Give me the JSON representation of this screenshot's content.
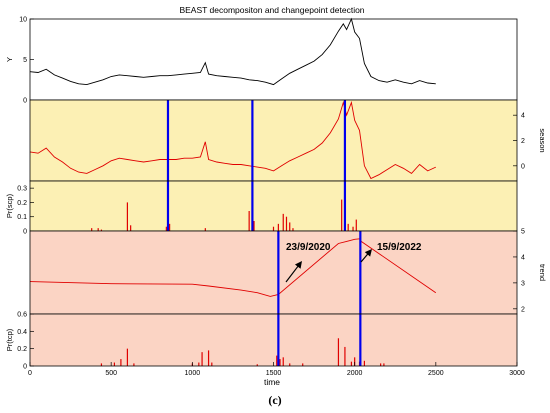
{
  "chart_data": {
    "type": "line",
    "title": "BEAST decompositon and changepoint detection",
    "xlabel": "time",
    "xlim": [
      0,
      3000
    ],
    "x_ticks": [
      "0",
      "500",
      "1000",
      "1500",
      "2000",
      "2500",
      "3000"
    ],
    "panels": [
      {
        "name": "Y",
        "ylabel": "Y",
        "ylim": [
          0,
          10
        ],
        "y_ticks": [
          "0",
          "5",
          "10"
        ],
        "axis_side": "left",
        "background": "#ffffff",
        "line_color": "#000000",
        "x": [
          0,
          50,
          100,
          150,
          200,
          250,
          300,
          350,
          400,
          450,
          500,
          550,
          600,
          650,
          700,
          750,
          800,
          850,
          900,
          950,
          1000,
          1050,
          1080,
          1100,
          1150,
          1200,
          1250,
          1300,
          1350,
          1400,
          1450,
          1500,
          1550,
          1600,
          1650,
          1700,
          1750,
          1800,
          1850,
          1900,
          1930,
          1950,
          1980,
          2000,
          2030,
          2060,
          2100,
          2150,
          2200,
          2250,
          2300,
          2350,
          2400,
          2450,
          2500
        ],
        "values": [
          3.5,
          3.4,
          3.8,
          3.1,
          2.7,
          2.3,
          2.0,
          1.9,
          2.2,
          2.5,
          2.9,
          3.1,
          3.0,
          2.9,
          2.8,
          2.9,
          3.0,
          3.0,
          3.1,
          3.2,
          3.3,
          3.4,
          4.6,
          3.2,
          3.0,
          2.9,
          2.8,
          2.7,
          2.5,
          2.4,
          2.2,
          1.9,
          2.6,
          3.3,
          3.8,
          4.3,
          4.8,
          5.6,
          6.8,
          8.5,
          9.4,
          8.7,
          10.0,
          8.4,
          7.6,
          4.5,
          2.9,
          2.4,
          2.2,
          2.5,
          2.2,
          2.0,
          2.4,
          2.1,
          2.0
        ]
      },
      {
        "name": "season",
        "ylabel": "season",
        "ylim": [
          -1.2,
          5.2
        ],
        "y_ticks": [
          "0",
          "2",
          "4"
        ],
        "axis_side": "right",
        "background": "#fcf0b4",
        "line_color": "#e00000",
        "x": [
          0,
          50,
          100,
          150,
          200,
          250,
          300,
          350,
          400,
          450,
          500,
          550,
          600,
          650,
          700,
          750,
          800,
          850,
          900,
          950,
          1000,
          1050,
          1080,
          1100,
          1150,
          1200,
          1250,
          1300,
          1350,
          1400,
          1450,
          1500,
          1550,
          1600,
          1650,
          1700,
          1750,
          1800,
          1850,
          1900,
          1930,
          1950,
          1980,
          2000,
          2030,
          2060,
          2100,
          2150,
          2200,
          2250,
          2300,
          2350,
          2400,
          2450,
          2500
        ],
        "values": [
          1.1,
          1.0,
          1.4,
          0.7,
          0.3,
          -0.2,
          -0.5,
          -0.6,
          -0.3,
          0.0,
          0.4,
          0.6,
          0.5,
          0.4,
          0.3,
          0.4,
          0.5,
          0.5,
          0.5,
          0.6,
          0.6,
          0.7,
          1.9,
          0.5,
          0.3,
          0.2,
          0.1,
          0.1,
          0.0,
          -0.1,
          -0.2,
          -0.4,
          0.0,
          0.4,
          0.7,
          1.0,
          1.3,
          1.8,
          2.6,
          3.7,
          5.0,
          4.0,
          5.0,
          3.6,
          2.8,
          0.0,
          -1.0,
          -0.7,
          -0.3,
          0.1,
          -0.2,
          -0.6,
          0.1,
          -0.4,
          -0.1
        ],
        "changepoints": [
          850,
          1370,
          1940
        ]
      },
      {
        "name": "Pr(scp)",
        "ylabel": "Pr(scp)",
        "ylim": [
          0,
          0.35
        ],
        "y_ticks": [
          "0",
          "0.1",
          "0.2",
          "0.3"
        ],
        "axis_side": "left",
        "background": "#fcf0b4",
        "bar_color": "#e00000",
        "x": [
          380,
          420,
          440,
          600,
          620,
          840,
          860,
          1080,
          1350,
          1370,
          1380,
          1500,
          1530,
          1560,
          1580,
          1600,
          1620,
          1920,
          1940,
          1960,
          1990,
          2010
        ],
        "values": [
          0.02,
          0.02,
          0.01,
          0.2,
          0.04,
          0.03,
          0.05,
          0.02,
          0.14,
          0.03,
          0.07,
          0.03,
          0.05,
          0.12,
          0.1,
          0.06,
          0.02,
          0.22,
          0.1,
          0.05,
          0.03,
          0.08
        ],
        "changepoints": [
          850,
          1370,
          1940
        ]
      },
      {
        "name": "trend",
        "ylabel": "trend",
        "ylim": [
          1.8,
          5.0
        ],
        "y_ticks": [
          "2",
          "3",
          "4",
          "5"
        ],
        "axis_side": "right",
        "background": "#fbd4c4",
        "line_color": "#e00000",
        "x": [
          0,
          500,
          1000,
          1100,
          1300,
          1400,
          1480,
          1530,
          1900,
          1950,
          2000,
          2030,
          2040,
          2500
        ],
        "values": [
          3.05,
          2.97,
          2.95,
          2.88,
          2.72,
          2.62,
          2.48,
          2.55,
          4.52,
          4.6,
          4.68,
          4.7,
          4.6,
          2.62
        ],
        "changepoints": [
          1530,
          2035
        ],
        "annotations": [
          {
            "text": "23/9/2020",
            "x": 1530
          },
          {
            "text": "15/9/2022",
            "x": 2035
          }
        ]
      },
      {
        "name": "Pr(tcp)",
        "ylabel": "Pr(tcp)",
        "ylim": [
          0,
          0.6
        ],
        "y_ticks": [
          "0",
          "0.2",
          "0.4",
          "0.6"
        ],
        "axis_side": "left",
        "background": "#fbd4c4",
        "bar_color": "#e00000",
        "x": [
          440,
          520,
          560,
          600,
          640,
          1000,
          1040,
          1060,
          1100,
          1120,
          1400,
          1520,
          1540,
          1560,
          1600,
          1680,
          1900,
          1940,
          1980,
          2000,
          2030,
          2060,
          2160,
          2180
        ],
        "values": [
          0.03,
          0.04,
          0.08,
          0.2,
          0.03,
          0.03,
          0.04,
          0.16,
          0.18,
          0.04,
          0.02,
          0.12,
          0.08,
          0.1,
          0.03,
          0.03,
          0.32,
          0.22,
          0.05,
          0.1,
          0.05,
          0.06,
          0.03,
          0.03
        ],
        "changepoints": [
          1530,
          2035
        ]
      }
    ]
  },
  "caption": "(c)"
}
